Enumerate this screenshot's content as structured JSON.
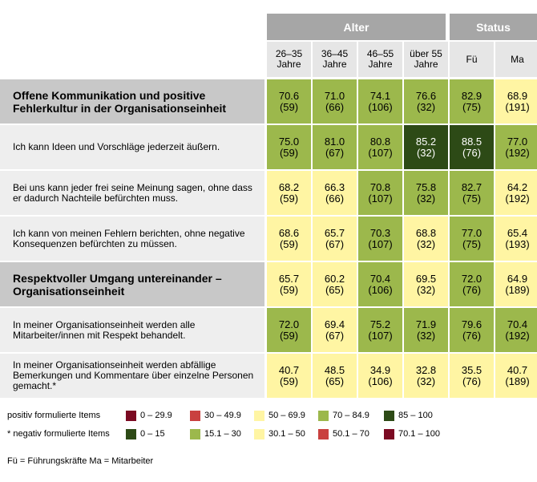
{
  "header": {
    "groups": [
      {
        "label": "Alter"
      },
      {
        "label": "Status"
      }
    ],
    "columns": [
      "26–35\nJahre",
      "36–45\nJahre",
      "46–55\nJahre",
      "über 55\nJahre",
      "Fü",
      "Ma"
    ]
  },
  "rows": [
    {
      "label": "Offene Kommunikation und positive Fehlerkultur in der Organisationseinheit",
      "section": true,
      "cells": [
        [
          "70.6",
          "(59)"
        ],
        [
          "71.0",
          "(66)"
        ],
        [
          "74.1",
          "(106)"
        ],
        [
          "76.6",
          "(32)"
        ],
        [
          "82.9",
          "(75)"
        ],
        [
          "68.9",
          "(191)"
        ]
      ]
    },
    {
      "label": "Ich kann Ideen und Vorschläge jederzeit äußern.",
      "section": false,
      "cells": [
        [
          "75.0",
          "(59)"
        ],
        [
          "81.0",
          "(67)"
        ],
        [
          "80.8",
          "(107)"
        ],
        [
          "85.2",
          "(32)"
        ],
        [
          "88.5",
          "(76)"
        ],
        [
          "77.0",
          "(192)"
        ]
      ]
    },
    {
      "label": "Bei uns kann jeder frei seine Meinung sagen, ohne dass er dadurch Nachteile befürchten muss.",
      "section": false,
      "cells": [
        [
          "68.2",
          "(59)"
        ],
        [
          "66.3",
          "(66)"
        ],
        [
          "70.8",
          "(107)"
        ],
        [
          "75.8",
          "(32)"
        ],
        [
          "82.7",
          "(75)"
        ],
        [
          "64.2",
          "(192)"
        ]
      ]
    },
    {
      "label": "Ich kann von meinen Fehlern berichten, ohne negative Konsequenzen befürchten zu müssen.",
      "section": false,
      "cells": [
        [
          "68.6",
          "(59)"
        ],
        [
          "65.7",
          "(67)"
        ],
        [
          "70.3",
          "(107)"
        ],
        [
          "68.8",
          "(32)"
        ],
        [
          "77.0",
          "(75)"
        ],
        [
          "65.4",
          "(193)"
        ]
      ]
    },
    {
      "label": "Respektvoller Umgang untereinander – Organisationseinheit",
      "section": true,
      "cells": [
        [
          "65.7",
          "(59)"
        ],
        [
          "60.2",
          "(65)"
        ],
        [
          "70.4",
          "(106)"
        ],
        [
          "69.5",
          "(32)"
        ],
        [
          "72.0",
          "(76)"
        ],
        [
          "64.9",
          "(189)"
        ]
      ]
    },
    {
      "label": "In meiner Organisationseinheit werden alle Mitarbeiter/innen mit Respekt behandelt.",
      "section": false,
      "cells": [
        [
          "72.0",
          "(59)"
        ],
        [
          "69.4",
          "(67)"
        ],
        [
          "75.2",
          "(107)"
        ],
        [
          "71.9",
          "(32)"
        ],
        [
          "79.6",
          "(76)"
        ],
        [
          "70.4",
          "(192)"
        ]
      ]
    },
    {
      "label": "In meiner Organisationseinheit werden abfällige Bemerkungen und Kommentare über einzelne Personen gemacht.*",
      "section": false,
      "cells": [
        [
          "40.7",
          "(59)"
        ],
        [
          "48.5",
          "(65)"
        ],
        [
          "34.9",
          "(106)"
        ],
        [
          "32.8",
          "(32)"
        ],
        [
          "35.5",
          "(76)"
        ],
        [
          "40.7",
          "(189)"
        ]
      ]
    }
  ],
  "colors": {
    "darkred": "#7b0a22",
    "red": "#c9413f",
    "yellow": "#fff5a3",
    "lightgreen": "#9cb84c",
    "darkgreen": "#2d4a16"
  },
  "cell_colors": [
    [
      "lightgreen",
      "lightgreen",
      "lightgreen",
      "lightgreen",
      "lightgreen",
      "yellow"
    ],
    [
      "lightgreen",
      "lightgreen",
      "lightgreen",
      "darkgreen",
      "darkgreen",
      "lightgreen"
    ],
    [
      "yellow",
      "yellow",
      "lightgreen",
      "lightgreen",
      "lightgreen",
      "yellow"
    ],
    [
      "yellow",
      "yellow",
      "lightgreen",
      "yellow",
      "lightgreen",
      "yellow"
    ],
    [
      "yellow",
      "yellow",
      "lightgreen",
      "yellow",
      "lightgreen",
      "yellow"
    ],
    [
      "lightgreen",
      "yellow",
      "lightgreen",
      "lightgreen",
      "lightgreen",
      "lightgreen"
    ],
    [
      "yellow",
      "yellow",
      "yellow",
      "yellow",
      "yellow",
      "yellow"
    ]
  ],
  "legend": {
    "positive": {
      "label": "positiv formulierte Items",
      "items": [
        {
          "color": "darkred",
          "range": "0 – 29.9"
        },
        {
          "color": "red",
          "range": "30 – 49.9"
        },
        {
          "color": "yellow",
          "range": "50 – 69.9"
        },
        {
          "color": "lightgreen",
          "range": "70 – 84.9"
        },
        {
          "color": "darkgreen",
          "range": "85 – 100"
        }
      ]
    },
    "negative": {
      "label": "* negativ formulierte Items",
      "items": [
        {
          "color": "darkgreen",
          "range": "0 – 15"
        },
        {
          "color": "lightgreen",
          "range": "15.1 – 30"
        },
        {
          "color": "yellow",
          "range": "30.1 – 50"
        },
        {
          "color": "red",
          "range": "50.1 – 70"
        },
        {
          "color": "darkred",
          "range": "70.1 – 100"
        }
      ]
    }
  },
  "footer": "Fü = Führungskräfte     Ma = Mitarbeiter"
}
